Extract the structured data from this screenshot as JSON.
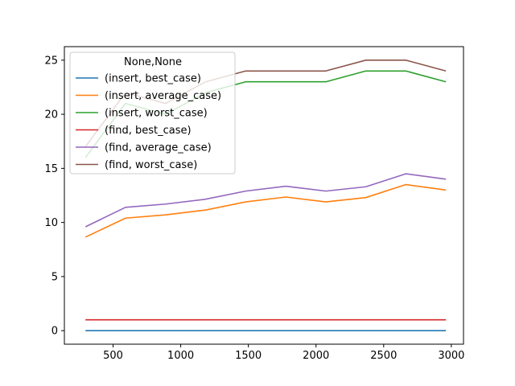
{
  "chart_data": {
    "type": "line",
    "title": "",
    "xlabel": "",
    "ylabel": "",
    "xlim": [
      140,
      3090
    ],
    "ylim": [
      -1.25,
      26.25
    ],
    "xticks": [
      500,
      1000,
      1500,
      2000,
      2500,
      3000
    ],
    "yticks": [
      0,
      5,
      10,
      15,
      20,
      25
    ],
    "grid": false,
    "legend": {
      "title": "None,None",
      "position": "top-left"
    },
    "x": [
      296,
      592,
      888,
      1184,
      1480,
      1776,
      2072,
      2368,
      2664,
      2960
    ],
    "series": [
      {
        "name": "(insert, best_case)",
        "color": "#1f77b4",
        "values": [
          0,
          0,
          0,
          0,
          0,
          0,
          0,
          0,
          0,
          0
        ]
      },
      {
        "name": "(insert, average_case)",
        "color": "#ff7f0e",
        "values": [
          8.65,
          10.4,
          10.7,
          11.15,
          11.9,
          12.35,
          11.9,
          12.3,
          13.5,
          13.0
        ]
      },
      {
        "name": "(insert, worst_case)",
        "color": "#2ca02c",
        "values": [
          16.0,
          21.0,
          20.0,
          22.0,
          23.0,
          23.0,
          23.0,
          24.0,
          24.0,
          23.0
        ]
      },
      {
        "name": "(find, best_case)",
        "color": "#d62728",
        "values": [
          1,
          1,
          1,
          1,
          1,
          1,
          1,
          1,
          1,
          1
        ]
      },
      {
        "name": "(find, average_case)",
        "color": "#9467bd",
        "values": [
          9.6,
          11.4,
          11.7,
          12.15,
          12.9,
          13.35,
          12.9,
          13.3,
          14.5,
          14.0
        ]
      },
      {
        "name": "(find, worst_case)",
        "color": "#8c564b",
        "values": [
          17.0,
          22.0,
          21.0,
          23.0,
          24.0,
          24.0,
          24.0,
          25.0,
          25.0,
          24.0
        ]
      }
    ]
  }
}
